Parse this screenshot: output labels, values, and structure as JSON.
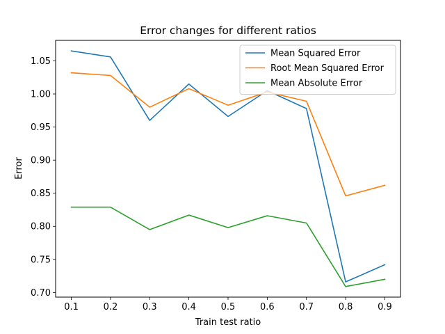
{
  "chart_data": {
    "type": "line",
    "title": "Error changes for different ratios",
    "xlabel": "Train test ratio",
    "ylabel": "Error",
    "x": [
      0.1,
      0.2,
      0.3,
      0.4,
      0.5,
      0.6,
      0.7,
      0.8,
      0.9
    ],
    "x_ticks": [
      "0.1",
      "0.2",
      "0.3",
      "0.4",
      "0.5",
      "0.6",
      "0.7",
      "0.8",
      "0.9"
    ],
    "y_ticks": [
      "0.70",
      "0.75",
      "0.80",
      "0.85",
      "0.90",
      "0.95",
      "1.00",
      "1.05"
    ],
    "xlim": [
      0.06,
      0.94
    ],
    "ylim": [
      0.693,
      1.081
    ],
    "grid": false,
    "legend_position": "top-right",
    "series": [
      {
        "name": "Mean Squared Error",
        "color": "#1f77b4",
        "values": [
          1.065,
          1.056,
          0.96,
          1.015,
          0.966,
          1.005,
          0.978,
          0.716,
          0.742
        ]
      },
      {
        "name": "Root Mean Squared Error",
        "color": "#ff7f0e",
        "values": [
          1.032,
          1.028,
          0.98,
          1.008,
          0.983,
          1.003,
          0.989,
          0.846,
          0.862
        ]
      },
      {
        "name": "Mean Absolute Error",
        "color": "#2ca02c",
        "values": [
          0.829,
          0.829,
          0.795,
          0.817,
          0.798,
          0.816,
          0.805,
          0.709,
          0.72
        ]
      }
    ]
  }
}
